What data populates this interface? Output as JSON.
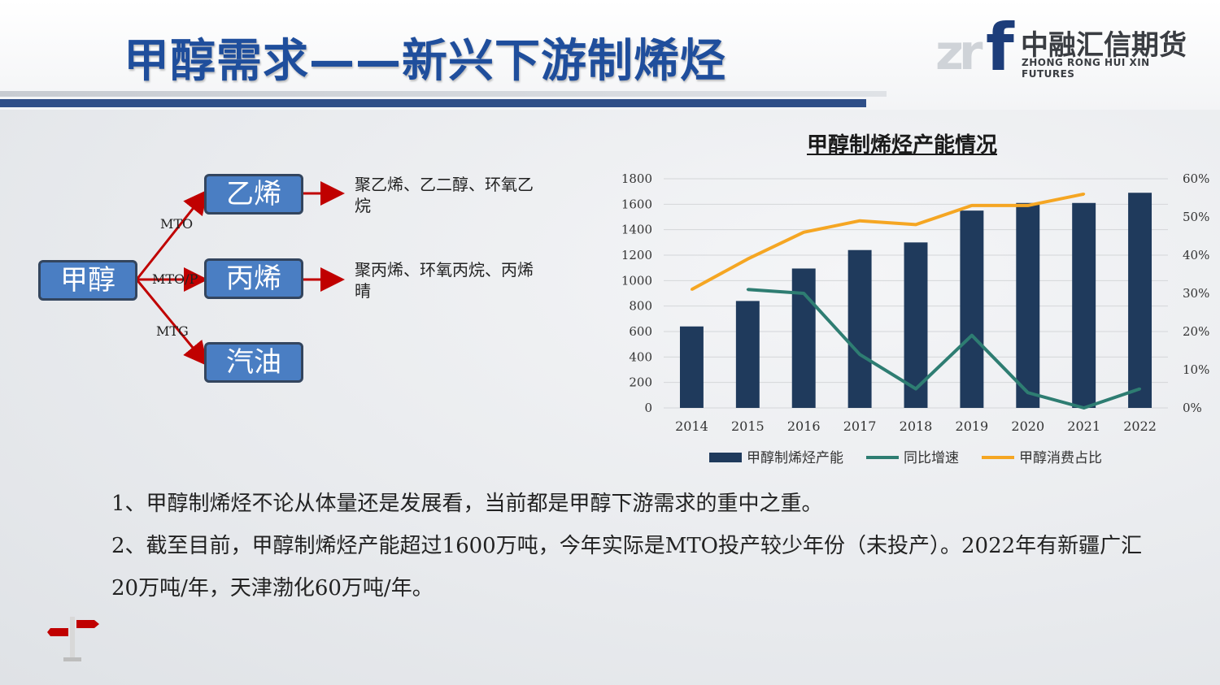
{
  "title": "甲醇需求——新兴下游制烯烃",
  "logo": {
    "mark_left": "zr",
    "mark_f": "f",
    "name_cn": "中融汇信期货",
    "name_en": "ZHONG RONG HUI XIN FUTURES"
  },
  "diagram": {
    "source": "甲醇",
    "products": [
      {
        "name": "乙烯",
        "route": "MTO",
        "downstream": "聚乙烯、乙二醇、环氧乙烷"
      },
      {
        "name": "丙烯",
        "route": "MTO/P",
        "downstream": "聚丙烯、环氧丙烷、丙烯晴"
      },
      {
        "name": "汽油",
        "route": "MTG",
        "downstream": ""
      }
    ],
    "colors": {
      "box": "#4a7ec3",
      "arrow": "#c00000"
    }
  },
  "chart_data": {
    "type": "bar",
    "title": "甲醇制烯烃产能情况",
    "categories": [
      "2014",
      "2015",
      "2016",
      "2017",
      "2018",
      "2019",
      "2020",
      "2021",
      "2022"
    ],
    "y_left": {
      "ticks": [
        "0",
        "200",
        "400",
        "600",
        "800",
        "1000",
        "1200",
        "1400",
        "1600",
        "1800"
      ],
      "range": [
        0,
        1800
      ]
    },
    "y_right": {
      "ticks": [
        "0%",
        "10%",
        "20%",
        "30%",
        "40%",
        "50%",
        "60%"
      ],
      "range": [
        0,
        0.6
      ]
    },
    "series": [
      {
        "name": "甲醇制烯烃产能",
        "type": "bar",
        "axis": "left",
        "color": "#1f3a5c",
        "values": [
          640,
          840,
          1095,
          1240,
          1300,
          1550,
          1610,
          1610,
          1690
        ]
      },
      {
        "name": "同比增速",
        "type": "line",
        "axis": "right",
        "color": "#2e7d72",
        "values": [
          null,
          0.31,
          0.3,
          0.14,
          0.05,
          0.19,
          0.04,
          0.0,
          0.05
        ]
      },
      {
        "name": "甲醇消费占比",
        "type": "line",
        "axis": "right",
        "color": "#f5a623",
        "values": [
          0.31,
          0.39,
          0.46,
          0.49,
          0.48,
          0.53,
          0.53,
          0.56,
          null
        ]
      }
    ],
    "grid": "horizontal",
    "legend_position": "bottom"
  },
  "bullets": [
    "1、甲醇制烯烃不论从体量还是发展看，当前都是甲醇下游需求的重中之重。",
    "2、截至目前，甲醇制烯烃产能超过1600万吨，今年实际是MTO投产较少年份（未投产）。2022年有新疆广汇20万吨/年，天津渤化60万吨/年。"
  ]
}
